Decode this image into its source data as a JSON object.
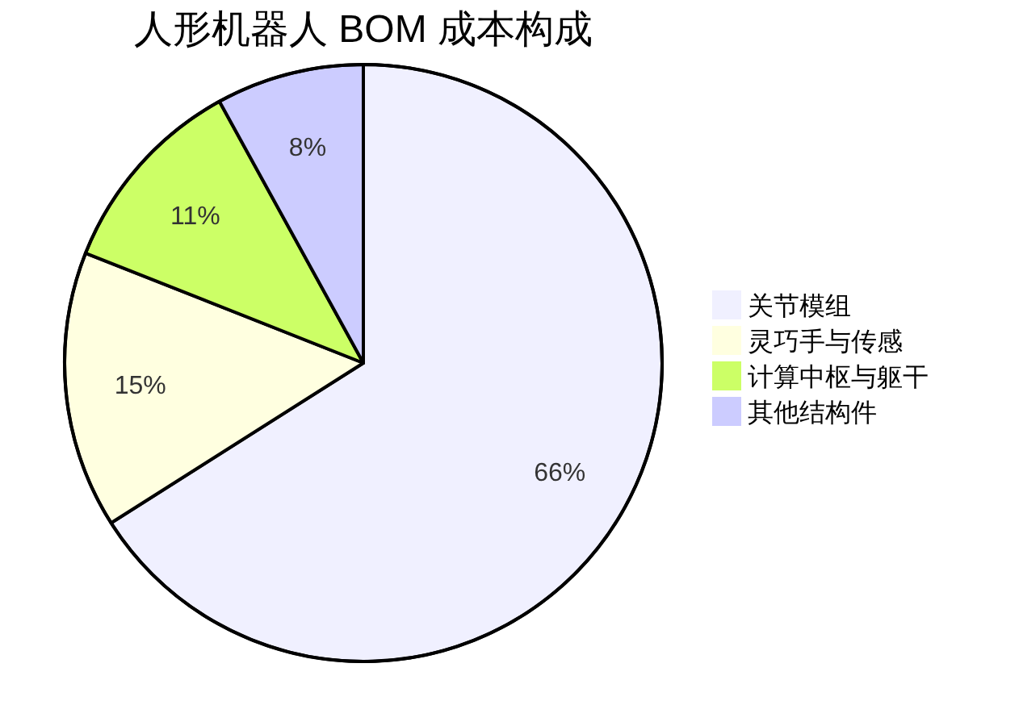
{
  "chart_data": {
    "type": "pie",
    "title": "人形机器人 BOM 成本构成",
    "categories": [
      "关节模组",
      "灵巧手与传感",
      "计算中枢与躯干",
      "其他结构件"
    ],
    "values": [
      66,
      15,
      11,
      8
    ],
    "colors": [
      "#f0f0ff",
      "#ffffe0",
      "#ccff66",
      "#ccccff"
    ],
    "value_labels": [
      "66%",
      "15%",
      "11%",
      "8%"
    ],
    "legend": "right"
  }
}
